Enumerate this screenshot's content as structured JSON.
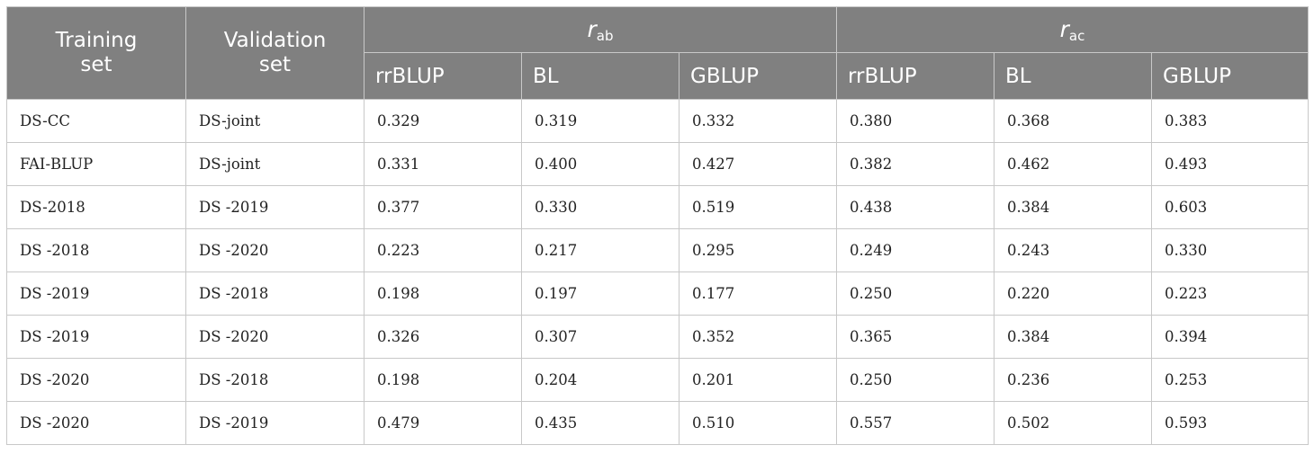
{
  "headers": {
    "training_set": [
      "Training",
      "set"
    ],
    "validation_set": [
      "Validation",
      "set"
    ],
    "group_ab": {
      "symbol": "r",
      "sub": "ab"
    },
    "group_ac": {
      "symbol": "r",
      "sub": "ac"
    },
    "methods": [
      "rrBLUP",
      "BL",
      "GBLUP",
      "rrBLUP",
      "BL",
      "GBLUP"
    ]
  },
  "rows": [
    [
      "DS-CC",
      "DS-joint",
      "0.329",
      "0.319",
      "0.332",
      "0.380",
      "0.368",
      "0.383"
    ],
    [
      "FAI-BLUP",
      "DS-joint",
      "0.331",
      "0.400",
      "0.427",
      "0.382",
      "0.462",
      "0.493"
    ],
    [
      "DS-2018",
      "DS -2019",
      "0.377",
      "0.330",
      "0.519",
      "0.438",
      "0.384",
      "0.603"
    ],
    [
      "DS -2018",
      "DS -2020",
      "0.223",
      "0.217",
      "0.295",
      "0.249",
      "0.243",
      "0.330"
    ],
    [
      "DS -2019",
      "DS -2018",
      "0.198",
      "0.197",
      "0.177",
      "0.250",
      "0.220",
      "0.223"
    ],
    [
      "DS -2019",
      "DS -2020",
      "0.326",
      "0.307",
      "0.352",
      "0.365",
      "0.384",
      "0.394"
    ],
    [
      "DS -2020",
      "DS -2018",
      "0.198",
      "0.204",
      "0.201",
      "0.250",
      "0.236",
      "0.253"
    ],
    [
      "DS -2020",
      "DS -2019",
      "0.479",
      "0.435",
      "0.510",
      "0.557",
      "0.502",
      "0.593"
    ]
  ]
}
